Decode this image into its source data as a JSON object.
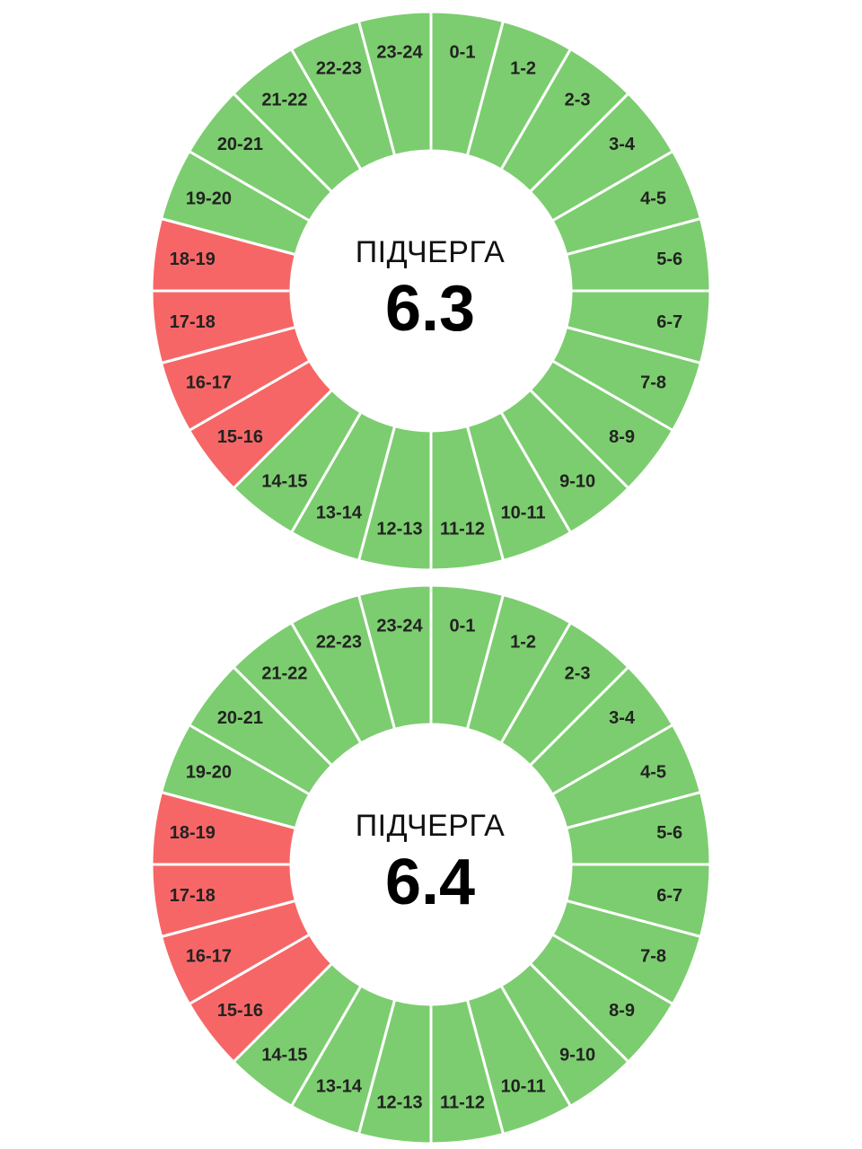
{
  "colors": {
    "on": "#7ccd6f",
    "off": "#f76666",
    "divider": "#ffffff",
    "label": "#222222"
  },
  "chart_data": [
    {
      "type": "pie",
      "style": "donut",
      "center_caption": "ПІДЧЕРГА",
      "center_value": "6.3",
      "segments": [
        {
          "label": "0-1",
          "status": "on"
        },
        {
          "label": "1-2",
          "status": "on"
        },
        {
          "label": "2-3",
          "status": "on"
        },
        {
          "label": "3-4",
          "status": "on"
        },
        {
          "label": "4-5",
          "status": "on"
        },
        {
          "label": "5-6",
          "status": "on"
        },
        {
          "label": "6-7",
          "status": "on"
        },
        {
          "label": "7-8",
          "status": "on"
        },
        {
          "label": "8-9",
          "status": "on"
        },
        {
          "label": "9-10",
          "status": "on"
        },
        {
          "label": "10-11",
          "status": "on"
        },
        {
          "label": "11-12",
          "status": "on"
        },
        {
          "label": "12-13",
          "status": "on"
        },
        {
          "label": "13-14",
          "status": "on"
        },
        {
          "label": "14-15",
          "status": "on"
        },
        {
          "label": "15-16",
          "status": "off"
        },
        {
          "label": "16-17",
          "status": "off"
        },
        {
          "label": "17-18",
          "status": "off"
        },
        {
          "label": "18-19",
          "status": "off"
        },
        {
          "label": "19-20",
          "status": "on"
        },
        {
          "label": "20-21",
          "status": "on"
        },
        {
          "label": "21-22",
          "status": "on"
        },
        {
          "label": "22-23",
          "status": "on"
        },
        {
          "label": "23-24",
          "status": "on"
        }
      ]
    },
    {
      "type": "pie",
      "style": "donut",
      "center_caption": "ПІДЧЕРГА",
      "center_value": "6.4",
      "segments": [
        {
          "label": "0-1",
          "status": "on"
        },
        {
          "label": "1-2",
          "status": "on"
        },
        {
          "label": "2-3",
          "status": "on"
        },
        {
          "label": "3-4",
          "status": "on"
        },
        {
          "label": "4-5",
          "status": "on"
        },
        {
          "label": "5-6",
          "status": "on"
        },
        {
          "label": "6-7",
          "status": "on"
        },
        {
          "label": "7-8",
          "status": "on"
        },
        {
          "label": "8-9",
          "status": "on"
        },
        {
          "label": "9-10",
          "status": "on"
        },
        {
          "label": "10-11",
          "status": "on"
        },
        {
          "label": "11-12",
          "status": "on"
        },
        {
          "label": "12-13",
          "status": "on"
        },
        {
          "label": "13-14",
          "status": "on"
        },
        {
          "label": "14-15",
          "status": "on"
        },
        {
          "label": "15-16",
          "status": "off"
        },
        {
          "label": "16-17",
          "status": "off"
        },
        {
          "label": "17-18",
          "status": "off"
        },
        {
          "label": "18-19",
          "status": "off"
        },
        {
          "label": "19-20",
          "status": "on"
        },
        {
          "label": "20-21",
          "status": "on"
        },
        {
          "label": "21-22",
          "status": "on"
        },
        {
          "label": "22-23",
          "status": "on"
        },
        {
          "label": "23-24",
          "status": "on"
        }
      ]
    }
  ]
}
